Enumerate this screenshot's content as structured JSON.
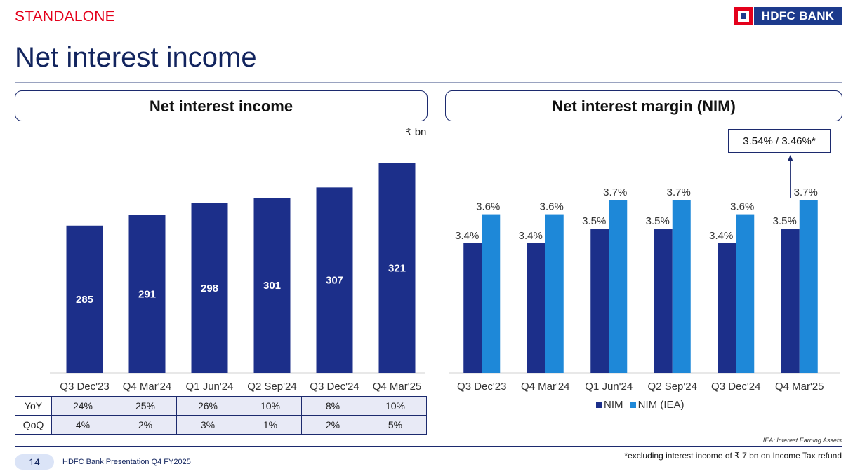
{
  "header": {
    "label": "STANDALONE",
    "title": "Net interest income",
    "logo_text": "HDFC BANK"
  },
  "colors": {
    "nim": "#1c2f8a",
    "nim_iea": "#1e88d8",
    "accent_red": "#e4001b",
    "navy": "#12245e"
  },
  "left_panel": {
    "header": "Net interest income",
    "unit": "₹ bn",
    "table": {
      "rows": [
        {
          "label": "YoY",
          "values": [
            "24%",
            "25%",
            "26%",
            "10%",
            "8%",
            "10%"
          ]
        },
        {
          "label": "QoQ",
          "values": [
            "4%",
            "2%",
            "3%",
            "1%",
            "2%",
            "5%"
          ]
        }
      ]
    }
  },
  "right_panel": {
    "header": "Net interest margin (NIM)",
    "callout": "3.54% / 3.46%*",
    "legend": [
      "NIM",
      "NIM (IEA)"
    ]
  },
  "chart_data": [
    {
      "type": "bar",
      "title": "Net interest income",
      "ylabel": "₹ bn",
      "categories": [
        "Q3 Dec'23",
        "Q4 Mar'24",
        "Q1 Jun'24",
        "Q2 Sep'24",
        "Q3 Dec'24",
        "Q4 Mar'25"
      ],
      "values": [
        285,
        291,
        298,
        301,
        307,
        321
      ],
      "data_labels": [
        "285",
        "291",
        "298",
        "301",
        "307",
        "321"
      ]
    },
    {
      "type": "bar",
      "title": "Net interest margin (NIM)",
      "categories": [
        "Q3 Dec'23",
        "Q4 Mar'24",
        "Q1 Jun'24",
        "Q2 Sep'24",
        "Q3 Dec'24",
        "Q4 Mar'25"
      ],
      "series": [
        {
          "name": "NIM",
          "values": [
            3.4,
            3.4,
            3.5,
            3.5,
            3.4,
            3.5
          ],
          "labels": [
            "3.4%",
            "3.4%",
            "3.5%",
            "3.5%",
            "3.4%",
            "3.5%"
          ]
        },
        {
          "name": "NIM (IEA)",
          "values": [
            3.6,
            3.6,
            3.7,
            3.7,
            3.6,
            3.7
          ],
          "labels": [
            "3.6%",
            "3.6%",
            "3.7%",
            "3.7%",
            "3.6%",
            "3.7%"
          ]
        }
      ],
      "legend": "bottom"
    }
  ],
  "footer": {
    "iea_note": "IEA: Interest Earning Assets",
    "footnote": "*excluding interest income of ₹ 7 bn on Income Tax refund",
    "page_number": "14",
    "presentation": "HDFC Bank Presentation Q4 FY2025"
  }
}
